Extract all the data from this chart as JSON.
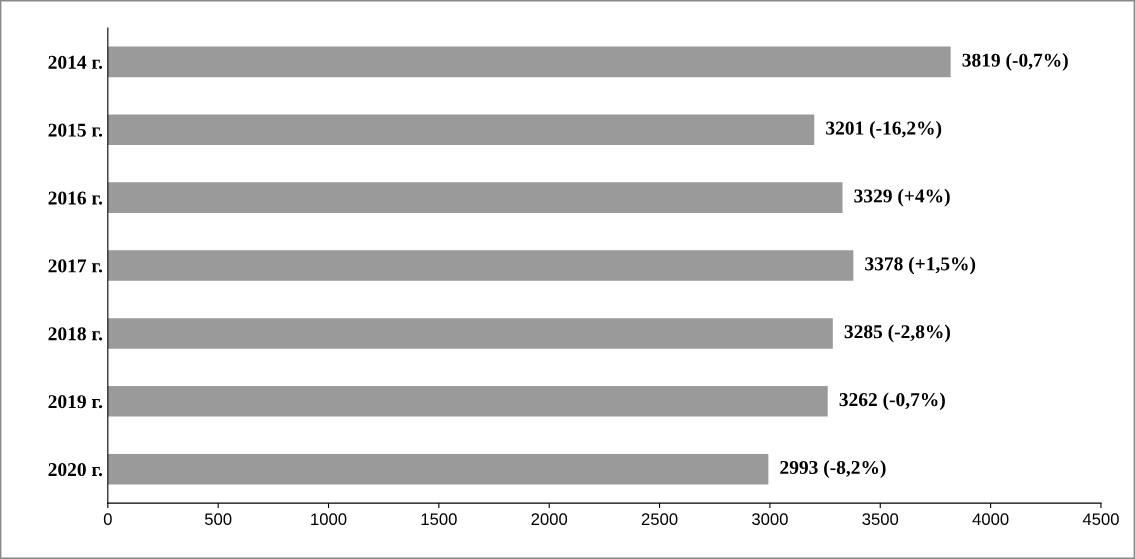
{
  "chart_data": {
    "type": "bar",
    "orientation": "horizontal",
    "categories": [
      "2014 г.",
      "2015 г.",
      "2016 г.",
      "2017 г.",
      "2018 г.",
      "2019 г.",
      "2020 г."
    ],
    "values": [
      3819,
      3201,
      3329,
      3378,
      3285,
      3262,
      2993
    ],
    "value_labels": [
      "3819 (-0,7%)",
      "3201 (-16,2%)",
      "3329 (+4%)",
      "3378 (+1,5%)",
      "3285 (-2,8%)",
      "3262 (-0,7%)",
      "2993 (-8,2%)"
    ],
    "color": "#9a9a9a",
    "xlim": [
      0,
      4500
    ],
    "xticks": [
      0,
      500,
      1000,
      1500,
      2000,
      2500,
      3000,
      3500,
      4000,
      4500
    ],
    "grid": false,
    "legend": false
  }
}
